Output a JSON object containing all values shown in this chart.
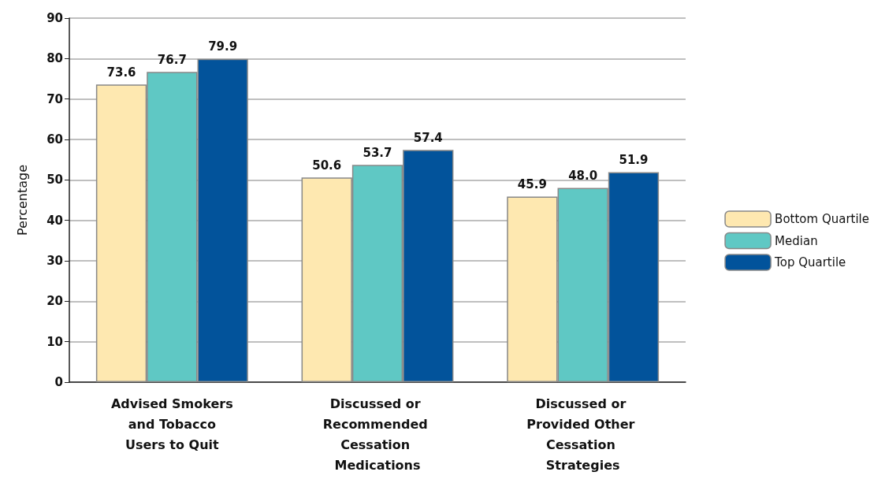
{
  "chart_data": {
    "type": "bar",
    "ylabel": "Percentage",
    "categories": [
      "Advised Smokers and Tobacco Users to Quit",
      "Discussed or Recommended Cessation Medications",
      "Discussed or Provided Other Cessation Strategies"
    ],
    "series": [
      {
        "name": "Bottom Quartile",
        "color": "#fee8b0",
        "values": [
          73.6,
          50.6,
          45.9
        ],
        "value_labels": [
          "73.6",
          "50.6",
          "45.9"
        ]
      },
      {
        "name": "Median",
        "color": "#5fc8c4",
        "values": [
          76.7,
          53.7,
          48.0
        ],
        "value_labels": [
          "76.7",
          "53.7",
          "48.0"
        ]
      },
      {
        "name": "Top Quartile",
        "color": "#02539b",
        "values": [
          79.9,
          57.4,
          51.9
        ],
        "value_labels": [
          "79.9",
          "57.4",
          "51.9"
        ]
      }
    ],
    "ylim": [
      0,
      90
    ],
    "yticks": [
      0,
      10,
      20,
      30,
      40,
      50,
      60,
      70,
      80,
      90
    ],
    "grid": "y",
    "legend": "right"
  }
}
